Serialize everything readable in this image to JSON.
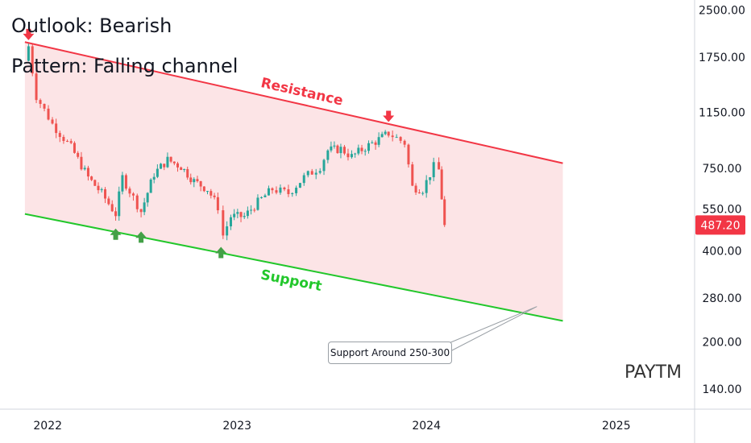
{
  "annotations": {
    "outlook": "Outlook: Bearish",
    "pattern": "Pattern: Falling channel",
    "resistance_label": "Resistance",
    "support_label": "Support",
    "callout": "Support Around 250-300",
    "ticker": "PAYTM"
  },
  "colors": {
    "up": "#26a69a",
    "down": "#ef5350",
    "resistance": "#f23645",
    "support": "#22c72b",
    "channel_fill": "#fce4e6",
    "arrow_down": "#f23645",
    "arrow_up": "#43a047",
    "price_tag": "#f23645"
  },
  "chart_data": {
    "type": "candlestick",
    "title": "",
    "yscale": "log",
    "ylim": [
      120,
      2700
    ],
    "yticks": [
      2500,
      1750,
      1150,
      750,
      550,
      400,
      280,
      200,
      140
    ],
    "ytick_labels": [
      "2500.00",
      "1750.00",
      "1150.00",
      "750.00",
      "550.00",
      "400.00",
      "280.00",
      "200.00",
      "140.00"
    ],
    "xticks": [
      "2022",
      "2023",
      "2024",
      "2025"
    ],
    "xtick_dates": [
      "2022-01-01",
      "2023-01-01",
      "2024-01-01",
      "2025-01-01"
    ],
    "xlim": [
      "2021-10-01",
      "2025-06-01"
    ],
    "last_price": 487.2,
    "last_price_label": "487.20",
    "resistance_line": [
      [
        "2021-11-18",
        1960
      ],
      [
        "2024-09-20",
        780
      ]
    ],
    "support_line": [
      [
        "2021-11-18",
        530
      ],
      [
        "2024-09-20",
        235
      ]
    ],
    "channel_end": "2024-09-20",
    "support_callout_target": [
      "2024-08-01",
      262
    ],
    "arrows_down": [
      [
        "2021-11-25",
        2050
      ],
      [
        "2023-10-20",
        1100
      ]
    ],
    "arrows_up": [
      [
        "2022-05-12",
        460
      ],
      [
        "2022-06-30",
        450
      ],
      [
        "2022-12-01",
        400
      ]
    ],
    "key_prices": [
      [
        "2021-11-18",
        1700
      ],
      [
        "2021-11-25",
        1900
      ],
      [
        "2021-12-10",
        1300
      ],
      [
        "2022-01-10",
        1050
      ],
      [
        "2022-02-15",
        880
      ],
      [
        "2022-03-20",
        700
      ],
      [
        "2022-04-15",
        620
      ],
      [
        "2022-05-12",
        530
      ],
      [
        "2022-05-25",
        700
      ],
      [
        "2022-06-15",
        600
      ],
      [
        "2022-06-30",
        540
      ],
      [
        "2022-07-25",
        720
      ],
      [
        "2022-08-20",
        800
      ],
      [
        "2022-09-15",
        760
      ],
      [
        "2022-10-10",
        680
      ],
      [
        "2022-11-05",
        640
      ],
      [
        "2022-11-25",
        560
      ],
      [
        "2022-12-05",
        450
      ],
      [
        "2022-12-20",
        520
      ],
      [
        "2023-01-15",
        520
      ],
      [
        "2023-02-10",
        580
      ],
      [
        "2023-03-10",
        640
      ],
      [
        "2023-04-10",
        620
      ],
      [
        "2023-05-10",
        700
      ],
      [
        "2023-06-10",
        760
      ],
      [
        "2023-06-25",
        860
      ],
      [
        "2023-07-20",
        870
      ],
      [
        "2023-08-10",
        820
      ],
      [
        "2023-09-05",
        880
      ],
      [
        "2023-09-25",
        920
      ],
      [
        "2023-10-20",
        980
      ],
      [
        "2023-11-20",
        910
      ],
      [
        "2023-12-05",
        650
      ],
      [
        "2023-12-25",
        640
      ],
      [
        "2024-01-15",
        760
      ],
      [
        "2024-01-25",
        740
      ],
      [
        "2024-02-05",
        487.2
      ]
    ]
  }
}
